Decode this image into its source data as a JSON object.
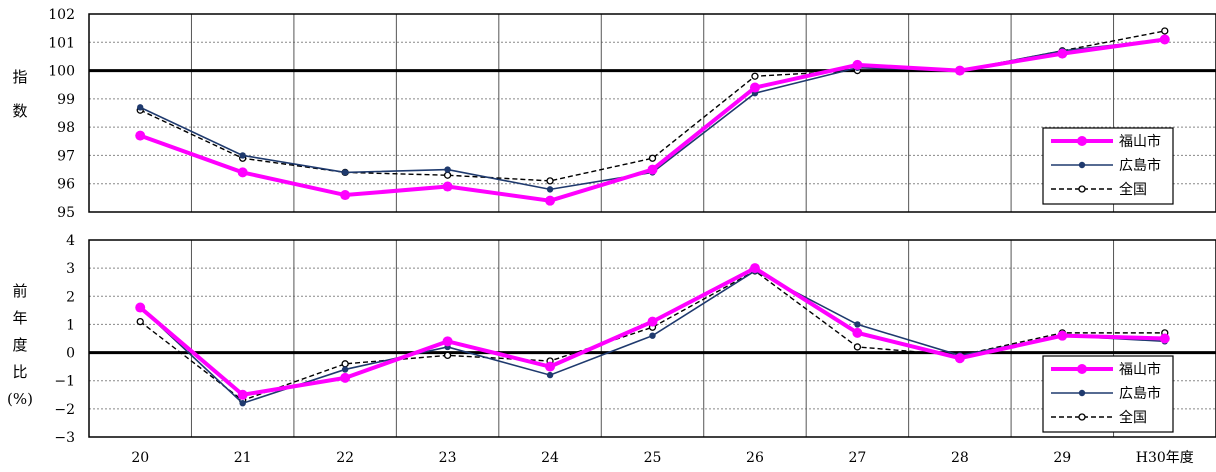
{
  "chart_data": [
    {
      "type": "line",
      "ylabel": [
        "指",
        "数"
      ],
      "categories": [
        "20",
        "21",
        "22",
        "23",
        "24",
        "25",
        "26",
        "27",
        "28",
        "29",
        "H30年度"
      ],
      "ylim": [
        95,
        102
      ],
      "yticks": [
        "95",
        "96",
        "97",
        "98",
        "99",
        "100",
        "101",
        "102"
      ],
      "baseline": 100,
      "grid": true,
      "legend_position": "lower-right",
      "series": [
        {
          "name": "福山市",
          "color": "#ff00ff",
          "style": "thick",
          "values": [
            97.7,
            96.4,
            95.6,
            95.9,
            95.4,
            96.5,
            99.4,
            100.2,
            100.0,
            100.6,
            101.1
          ]
        },
        {
          "name": "広島市",
          "color": "#1f3a6e",
          "style": "solid",
          "values": [
            98.7,
            97.0,
            96.4,
            96.5,
            95.8,
            96.4,
            99.2,
            100.1,
            100.0,
            100.7,
            101.1
          ]
        },
        {
          "name": "全国",
          "color": "#000000",
          "style": "dashed",
          "values": [
            98.6,
            96.9,
            96.4,
            96.3,
            96.1,
            96.9,
            99.8,
            100.0,
            100.0,
            100.7,
            101.4
          ]
        }
      ]
    },
    {
      "type": "line",
      "ylabel": [
        "前",
        "年",
        "度",
        "比",
        "(%)"
      ],
      "categories": [
        "20",
        "21",
        "22",
        "23",
        "24",
        "25",
        "26",
        "27",
        "28",
        "29",
        "H30年度"
      ],
      "ylim": [
        -3,
        4
      ],
      "yticks": [
        "−3",
        "−2",
        "−1",
        "0",
        "1",
        "2",
        "3",
        "4"
      ],
      "baseline": 0,
      "grid": true,
      "legend_position": "lower-right",
      "series": [
        {
          "name": "福山市",
          "color": "#ff00ff",
          "style": "thick",
          "values": [
            1.6,
            -1.5,
            -0.9,
            0.4,
            -0.5,
            1.1,
            3.0,
            0.7,
            -0.2,
            0.6,
            0.5
          ]
        },
        {
          "name": "広島市",
          "color": "#1f3a6e",
          "style": "solid",
          "values": [
            1.6,
            -1.8,
            -0.6,
            0.2,
            -0.8,
            0.6,
            2.9,
            1.0,
            -0.1,
            0.6,
            0.4
          ]
        },
        {
          "name": "全国",
          "color": "#000000",
          "style": "dashed",
          "values": [
            1.1,
            -1.7,
            -0.4,
            -0.1,
            -0.3,
            0.9,
            2.9,
            0.2,
            -0.1,
            0.7,
            0.7
          ]
        }
      ]
    }
  ]
}
